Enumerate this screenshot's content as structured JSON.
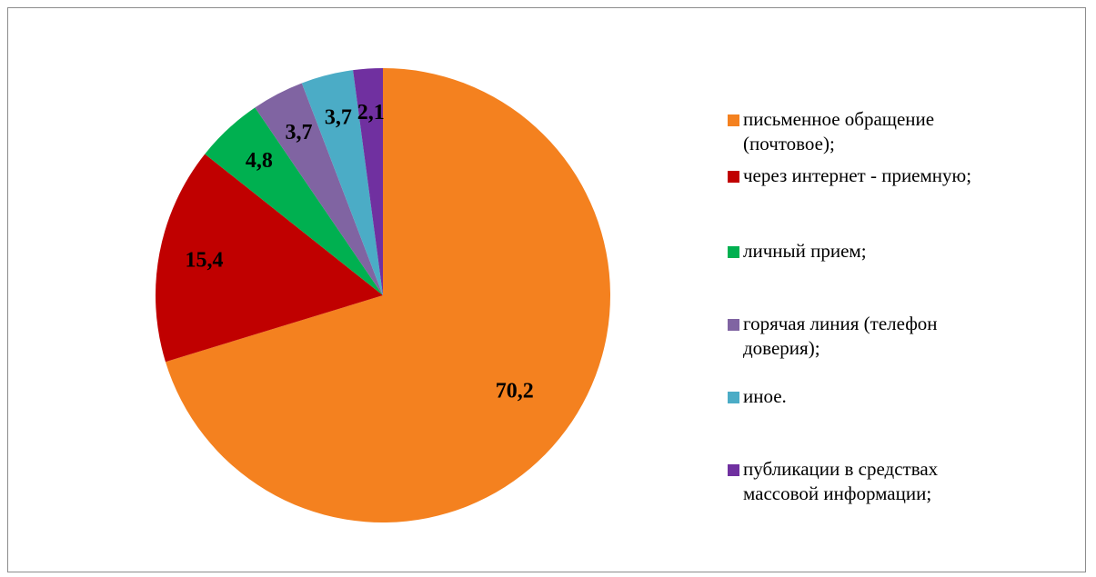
{
  "chart_data": {
    "type": "pie",
    "start_angle_deg": 0,
    "direction": "clockwise",
    "series": [
      {
        "label": "письменное обращение\n(почтовое);",
        "value": 70.2,
        "display": "70,2",
        "color": "#F4811F"
      },
      {
        "label": "через интернет - приемную;",
        "value": 15.4,
        "display": "15,4",
        "color": "#C00000"
      },
      {
        "label": "личный прием;",
        "value": 4.8,
        "display": "4,8",
        "color": "#00B050"
      },
      {
        "label": "горячая линия (телефон\nдоверия);",
        "value": 3.7,
        "display": "3,7",
        "color": "#8064A2"
      },
      {
        "label": "иное.",
        "value": 3.7,
        "display": "3,7",
        "color": "#4BACC6"
      },
      {
        "label": "публикации в средствах\nмассовой информации;",
        "value": 2.1,
        "display": "2,1",
        "color": "#7030A0"
      }
    ],
    "legend_position": "right"
  }
}
